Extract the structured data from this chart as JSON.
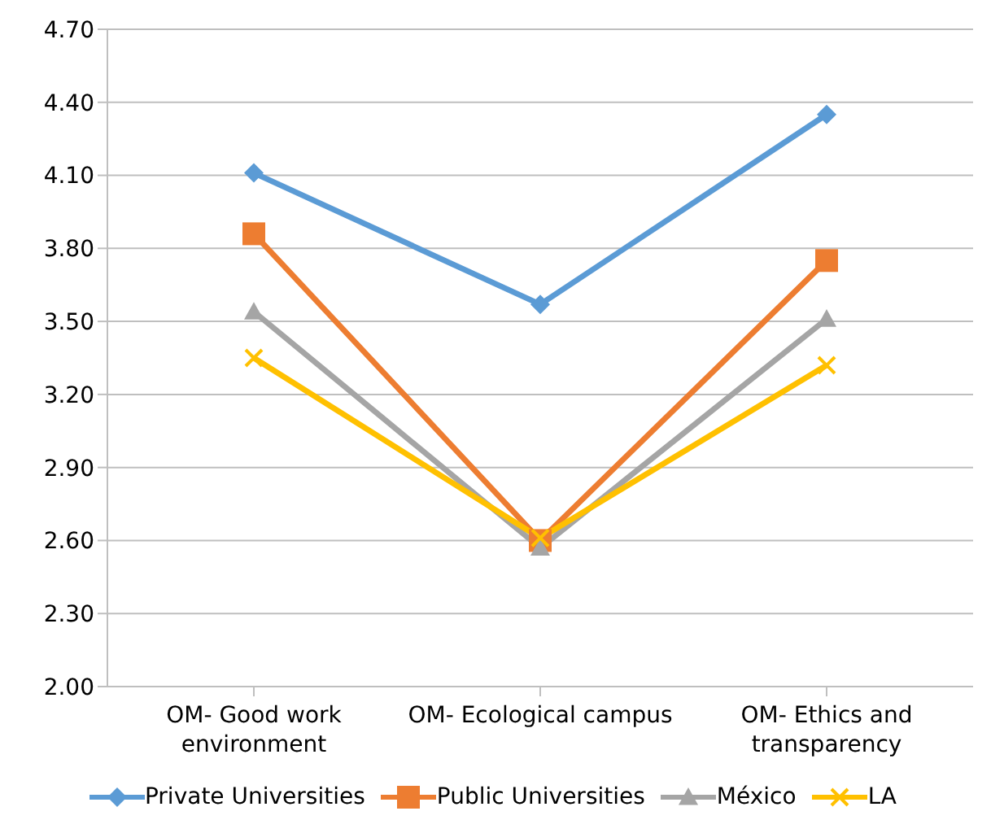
{
  "chart_data": {
    "type": "line",
    "categories": [
      "OM- Good work environment",
      "OM- Ecological campus",
      "OM- Ethics and transparency"
    ],
    "series": [
      {
        "name": "Private Universities",
        "color": "#5b9bd5",
        "marker": "diamond",
        "values": [
          4.11,
          3.57,
          4.35
        ]
      },
      {
        "name": "Public Universities",
        "color": "#ed7d31",
        "marker": "square",
        "values": [
          3.86,
          2.6,
          3.75
        ]
      },
      {
        "name": "México",
        "color": "#a5a5a5",
        "marker": "triangle",
        "values": [
          3.54,
          2.57,
          3.51
        ]
      },
      {
        "name": "LA",
        "color": "#ffc000",
        "marker": "cross",
        "values": [
          3.35,
          2.61,
          3.32
        ]
      }
    ],
    "ylim": [
      2.0,
      4.7
    ],
    "yticks": [
      {
        "value": 2.0,
        "label": "2.00"
      },
      {
        "value": 2.3,
        "label": "2.30"
      },
      {
        "value": 2.6,
        "label": "2.60"
      },
      {
        "value": 2.9,
        "label": "2.90"
      },
      {
        "value": 3.2,
        "label": "3.20"
      },
      {
        "value": 3.5,
        "label": "3.50"
      },
      {
        "value": 3.8,
        "label": "3.80"
      },
      {
        "value": 4.1,
        "label": "4.10"
      },
      {
        "value": 4.4,
        "label": "4.40"
      },
      {
        "value": 4.7,
        "label": "4.70"
      }
    ],
    "grid": "y",
    "legend": "bottom"
  }
}
